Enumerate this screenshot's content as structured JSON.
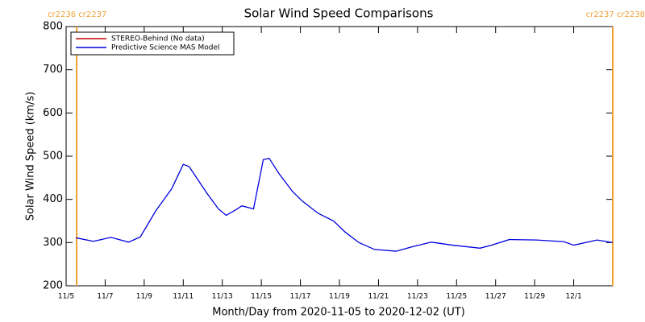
{
  "chart_data": {
    "type": "line",
    "title": "Solar Wind Speed Comparisons",
    "xlabel": "Month/Day from 2020-11-05 to 2020-12-02 (UT)",
    "ylabel": "Solar Wind Speed (km/s)",
    "x": [
      0.5,
      1.4,
      2.3,
      3.2,
      3.8,
      4.6,
      5.4,
      6.0,
      6.3,
      7.2,
      7.8,
      8.2,
      8.7,
      9.0,
      9.6,
      10.1,
      10.4,
      10.9,
      11.6,
      12.1,
      12.9,
      13.7,
      14.3,
      15.0,
      15.8,
      16.9,
      17.7,
      18.7,
      19.8,
      21.2,
      21.8,
      22.7,
      24.1,
      25.5,
      26.0,
      27.2,
      28.0
    ],
    "series": [
      {
        "name": "STEREO-Behind (No data)",
        "color": "#c00000",
        "values": [
          null,
          null,
          null,
          null,
          null,
          null,
          null,
          null,
          null,
          null,
          null,
          null,
          null,
          null,
          null,
          null,
          null,
          null,
          null,
          null,
          null,
          null,
          null,
          null,
          null,
          null,
          null,
          null,
          null,
          null,
          null,
          null,
          null,
          null,
          null,
          null,
          null
        ]
      },
      {
        "name": "Predictive Science MAS Model",
        "color": "#0000e0",
        "values": [
          311,
          303,
          312,
          301,
          313,
          374,
          424,
          481,
          476,
          415,
          378,
          363,
          376,
          385,
          378,
          492,
          495,
          460,
          418,
          396,
          368,
          350,
          324,
          300,
          284,
          280,
          290,
          301,
          294,
          287,
          294,
          307,
          306,
          302,
          294,
          306,
          300
        ]
      }
    ],
    "xlim": [
      0,
      28
    ],
    "xticks": [
      {
        "value": 0,
        "label": "11/5"
      },
      {
        "value": 2,
        "label": "11/7"
      },
      {
        "value": 4,
        "label": "11/9"
      },
      {
        "value": 6,
        "label": "11/11"
      },
      {
        "value": 8,
        "label": "11/13"
      },
      {
        "value": 10,
        "label": "11/15"
      },
      {
        "value": 12,
        "label": "11/17"
      },
      {
        "value": 14,
        "label": "11/19"
      },
      {
        "value": 16,
        "label": "11/21"
      },
      {
        "value": 18,
        "label": "11/23"
      },
      {
        "value": 20,
        "label": "11/25"
      },
      {
        "value": 22,
        "label": "11/27"
      },
      {
        "value": 24,
        "label": "11/29"
      },
      {
        "value": 26,
        "label": "12/1"
      }
    ],
    "ylim": [
      200,
      800
    ],
    "yticks": [
      200,
      300,
      400,
      500,
      600,
      700,
      800
    ],
    "vlines": [
      {
        "x": 0.54,
        "label": "cr2236 cr2237",
        "color": "#f0a030"
      },
      {
        "x": 28,
        "label": "cr2237 cr2238",
        "color": "#f0a030"
      }
    ],
    "legend": "upper left"
  }
}
